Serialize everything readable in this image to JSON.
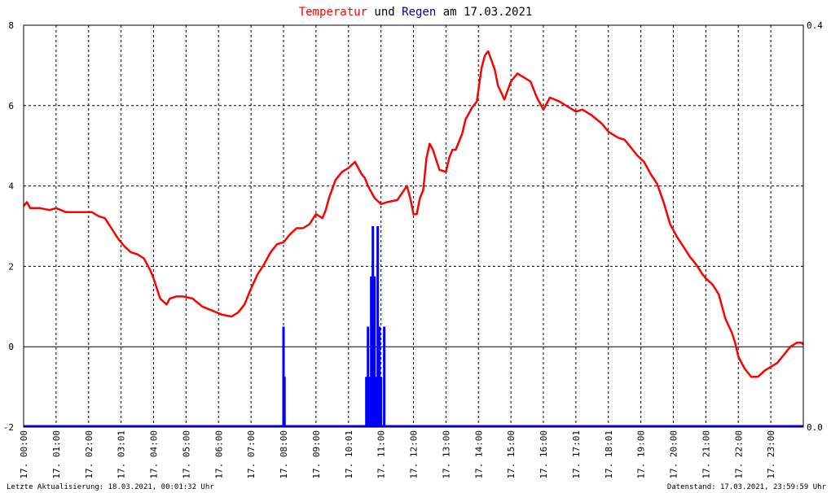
{
  "chart_data": {
    "type": "line",
    "title": {
      "part1": "Temperatur",
      "part2": " und ",
      "part3": "Regen",
      "part4": " am 17.03.2021"
    },
    "colors": {
      "temperature": "#ff0000",
      "rain": "#0000ff",
      "title_temp": "#ff0000",
      "title_rain": "#000080",
      "grid": "#000000",
      "background": "#ffffff"
    },
    "grid": true,
    "y_left": {
      "ylim": [
        -2,
        8
      ],
      "ticks": [
        -2,
        0,
        2,
        4,
        6,
        8
      ],
      "tick_labels": [
        "-2",
        "0",
        "2",
        "4",
        "6",
        "8"
      ]
    },
    "y_right": {
      "ylim": [
        0,
        0.4
      ],
      "tick_labels": [
        "0.0",
        "0.4"
      ]
    },
    "x_hours_range": [
      0,
      24
    ],
    "x_tick_labels": [
      "17. 00:00",
      "17. 01:00",
      "17. 02:00",
      "17. 03:01",
      "17. 04:00",
      "17. 05:00",
      "17. 06:00",
      "17. 07:00",
      "17. 08:00",
      "17. 09:00",
      "17. 10:01",
      "17. 11:00",
      "17. 12:00",
      "17. 13:00",
      "17. 14:00",
      "17. 15:00",
      "17. 16:00",
      "17. 17:01",
      "17. 18:01",
      "17. 19:00",
      "17. 20:00",
      "17. 21:00",
      "17. 22:00",
      "17. 23:00"
    ],
    "series": [
      {
        "name": "Temperatur",
        "x": [
          0,
          0.1,
          0.2,
          0.5,
          0.8,
          1.0,
          1.3,
          1.6,
          1.9,
          2.1,
          2.3,
          2.5,
          2.7,
          2.9,
          3.1,
          3.3,
          3.5,
          3.7,
          3.9,
          4.0,
          4.2,
          4.4,
          4.5,
          4.7,
          4.9,
          5.2,
          5.5,
          5.8,
          6.1,
          6.4,
          6.6,
          6.8,
          7.0,
          7.2,
          7.4,
          7.6,
          7.8,
          8.0,
          8.2,
          8.4,
          8.6,
          8.8,
          9.0,
          9.2,
          9.3,
          9.4,
          9.6,
          9.8,
          10.0,
          10.2,
          10.4,
          10.5,
          10.6,
          10.8,
          11.0,
          11.2,
          11.5,
          11.8,
          11.9,
          12.0,
          12.1,
          12.2,
          12.3,
          12.4,
          12.5,
          12.6,
          12.8,
          13.0,
          13.1,
          13.2,
          13.3,
          13.5,
          13.6,
          13.8,
          13.95,
          14.0,
          14.1,
          14.2,
          14.3,
          14.5,
          14.6,
          14.8,
          15.0,
          15.2,
          15.3,
          15.5,
          15.6,
          15.8,
          16.0,
          16.2,
          16.5,
          16.8,
          17.0,
          17.2,
          17.5,
          17.8,
          18.0,
          18.3,
          18.5,
          18.7,
          18.9,
          19.1,
          19.3,
          19.5,
          19.7,
          19.9,
          20.1,
          20.3,
          20.5,
          20.7,
          20.9,
          21.0,
          21.2,
          21.4,
          21.6,
          21.8,
          21.9,
          22.0,
          22.1,
          22.2,
          22.4,
          22.6,
          22.8,
          23.0,
          23.2,
          23.4,
          23.6,
          23.8,
          23.95,
          24.0
        ],
        "y": [
          3.5,
          3.6,
          3.45,
          3.45,
          3.4,
          3.45,
          3.35,
          3.35,
          3.35,
          3.35,
          3.25,
          3.2,
          2.95,
          2.7,
          2.5,
          2.35,
          2.3,
          2.2,
          1.9,
          1.7,
          1.2,
          1.05,
          1.2,
          1.25,
          1.25,
          1.2,
          1.0,
          0.9,
          0.8,
          0.75,
          0.85,
          1.05,
          1.45,
          1.8,
          2.05,
          2.35,
          2.55,
          2.6,
          2.8,
          2.95,
          2.95,
          3.05,
          3.3,
          3.2,
          3.4,
          3.7,
          4.15,
          4.35,
          4.45,
          4.6,
          4.3,
          4.2,
          4.0,
          3.7,
          3.55,
          3.6,
          3.65,
          4.0,
          3.7,
          3.3,
          3.3,
          3.7,
          3.9,
          4.7,
          5.05,
          4.9,
          4.4,
          4.35,
          4.7,
          4.9,
          4.9,
          5.3,
          5.65,
          5.95,
          6.1,
          6.4,
          6.95,
          7.25,
          7.35,
          6.9,
          6.5,
          6.15,
          6.6,
          6.8,
          6.75,
          6.65,
          6.6,
          6.2,
          5.9,
          6.2,
          6.1,
          5.95,
          5.85,
          5.9,
          5.75,
          5.55,
          5.35,
          5.2,
          5.15,
          4.95,
          4.75,
          4.6,
          4.3,
          4.05,
          3.6,
          3.05,
          2.75,
          2.5,
          2.25,
          2.05,
          1.8,
          1.7,
          1.55,
          1.3,
          0.7,
          0.35,
          0.1,
          -0.25,
          -0.4,
          -0.55,
          -0.75,
          -0.75,
          -0.6,
          -0.5,
          -0.4,
          -0.2,
          0.0,
          0.1,
          0.1,
          0.05
        ]
      },
      {
        "name": "Regen",
        "bars": [
          {
            "x": 8.0,
            "y": 0.1
          },
          {
            "x": 8.03,
            "y": 0.05
          },
          {
            "x": 10.55,
            "y": 0.05
          },
          {
            "x": 10.6,
            "y": 0.1
          },
          {
            "x": 10.65,
            "y": 0.05
          },
          {
            "x": 10.7,
            "y": 0.15
          },
          {
            "x": 10.75,
            "y": 0.2
          },
          {
            "x": 10.8,
            "y": 0.15
          },
          {
            "x": 10.85,
            "y": 0.05
          },
          {
            "x": 10.9,
            "y": 0.2
          },
          {
            "x": 10.95,
            "y": 0.1
          },
          {
            "x": 11.0,
            "y": 0.05
          },
          {
            "x": 11.1,
            "y": 0.1
          }
        ]
      }
    ]
  },
  "footer": {
    "left": "Letzte Aktualisierung: 18.03.2021, 00:01:32 Uhr",
    "right": "Datenstand: 17.03.2021, 23:59:59 Uhr"
  }
}
